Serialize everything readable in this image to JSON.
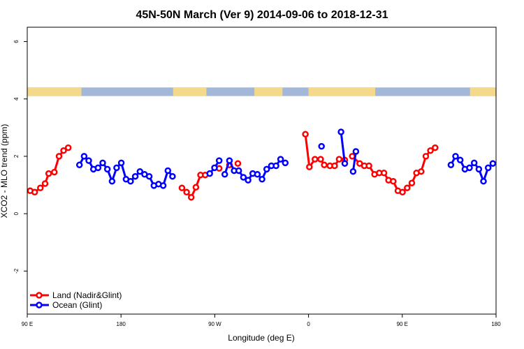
{
  "chart_data": {
    "type": "line",
    "title": "45N-50N March (Ver 9)   2014-09-06 to 2018-12-31",
    "xlabel": "Longitude (deg E)",
    "ylabel": "XCO2 - MLO trend (ppm)",
    "xlim": [
      90,
      540
    ],
    "ylim": [
      -3.5,
      6.5
    ],
    "x_ticks": [
      {
        "value": 90,
        "label": "90 E"
      },
      {
        "value": 180,
        "label": "180"
      },
      {
        "value": 270,
        "label": "90 W"
      },
      {
        "value": 360,
        "label": "0"
      },
      {
        "value": 450,
        "label": "90 E"
      },
      {
        "value": 540,
        "label": "180"
      }
    ],
    "y_ticks": [
      {
        "value": -2,
        "label": "-2"
      },
      {
        "value": 0,
        "label": "0"
      },
      {
        "value": 2,
        "label": "2"
      },
      {
        "value": 4,
        "label": "4"
      },
      {
        "value": 6,
        "label": "6"
      }
    ],
    "legend": {
      "position": "bottom-left",
      "entries": [
        {
          "name": "Land (Nadir&Glint)",
          "color": "#ff0000"
        },
        {
          "name": "Ocean (Glint)",
          "color": "#0000ff"
        }
      ]
    },
    "surface_strip": {
      "y_range": [
        4.1,
        4.4
      ],
      "land_color": "#f5d98a",
      "ocean_color": "#a3b8d8",
      "land_intervals": [
        [
          90,
          142
        ],
        [
          230,
          262
        ],
        [
          308,
          335
        ],
        [
          360,
          424
        ],
        [
          515,
          540
        ]
      ]
    },
    "series": [
      {
        "name": "Land (Nadir&Glint)",
        "color": "#ff0000",
        "segments": [
          [
            [
              92.8,
              0.8
            ],
            [
              97.2,
              0.75
            ],
            [
              102.6,
              0.9
            ],
            [
              107.1,
              1.05
            ],
            [
              110.6,
              1.4
            ],
            [
              116.0,
              1.45
            ],
            [
              120.5,
              2.0
            ],
            [
              124.9,
              2.2
            ],
            [
              129.4,
              2.3
            ]
          ],
          [
            [
              238.5,
              0.9
            ],
            [
              243.0,
              0.75
            ],
            [
              247.4,
              0.57
            ],
            [
              251.9,
              0.92
            ],
            [
              256.3,
              1.35
            ],
            [
              260.8,
              1.35
            ]
          ],
          [
            [
              274.2,
              1.58
            ]
          ],
          [
            [
              284.1,
              1.7
            ]
          ],
          [
            [
              292.2,
              1.75
            ]
          ],
          [
            [
              357.0,
              2.77
            ],
            [
              360.8,
              1.63
            ],
            [
              366.2,
              1.9
            ],
            [
              371.6,
              1.9
            ],
            [
              375.1,
              1.7
            ],
            [
              380.5,
              1.67
            ],
            [
              385.0,
              1.67
            ],
            [
              389.4,
              1.9
            ],
            [
              394.8,
              1.87
            ]
          ],
          [
            [
              402.0,
              2.0
            ],
            [
              409.1,
              1.75
            ],
            [
              413.6,
              1.67
            ],
            [
              418.0,
              1.67
            ],
            [
              423.4,
              1.37
            ],
            [
              427.9,
              1.42
            ],
            [
              432.4,
              1.42
            ],
            [
              436.8,
              1.17
            ],
            [
              441.3,
              1.13
            ],
            [
              445.8,
              0.8
            ],
            [
              450.2,
              0.75
            ],
            [
              454.7,
              0.9
            ],
            [
              459.2,
              1.07
            ],
            [
              463.6,
              1.42
            ],
            [
              468.1,
              1.47
            ],
            [
              472.6,
              2.0
            ],
            [
              477.0,
              2.2
            ],
            [
              481.5,
              2.3
            ]
          ]
        ]
      },
      {
        "name": "Ocean (Glint)",
        "color": "#0000ff",
        "segments": [
          [
            [
              140.1,
              1.7
            ],
            [
              144.6,
              2.0
            ],
            [
              149.0,
              1.85
            ],
            [
              153.5,
              1.55
            ],
            [
              158.0,
              1.6
            ],
            [
              162.4,
              1.77
            ],
            [
              166.9,
              1.55
            ],
            [
              171.4,
              1.13
            ],
            [
              175.8,
              1.6
            ],
            [
              180.3,
              1.77
            ],
            [
              184.8,
              1.2
            ],
            [
              189.2,
              1.13
            ],
            [
              193.7,
              1.3
            ],
            [
              198.2,
              1.47
            ],
            [
              202.6,
              1.37
            ],
            [
              207.1,
              1.3
            ],
            [
              211.6,
              0.98
            ],
            [
              216.0,
              1.03
            ],
            [
              220.5,
              0.98
            ],
            [
              225.0,
              1.5
            ],
            [
              229.4,
              1.3
            ]
          ],
          [
            [
              265.2,
              1.4
            ],
            [
              269.7,
              1.6
            ],
            [
              274.2,
              1.85
            ]
          ],
          [
            [
              279.6,
              1.37
            ],
            [
              284.1,
              1.85
            ],
            [
              288.6,
              1.5
            ],
            [
              293.0,
              1.5
            ],
            [
              297.5,
              1.27
            ],
            [
              302.0,
              1.17
            ],
            [
              306.4,
              1.4
            ],
            [
              310.9,
              1.37
            ],
            [
              315.4,
              1.2
            ],
            [
              319.8,
              1.55
            ],
            [
              324.3,
              1.67
            ],
            [
              328.8,
              1.67
            ],
            [
              333.2,
              1.9
            ],
            [
              337.7,
              1.77
            ]
          ],
          [
            [
              372.5,
              2.35
            ]
          ],
          [
            [
              391.2,
              2.85
            ],
            [
              394.8,
              1.75
            ]
          ],
          [
            [
              402.8,
              1.47
            ],
            [
              405.5,
              2.17
            ]
          ],
          [
            [
              496.7,
              1.7
            ],
            [
              501.1,
              2.0
            ],
            [
              505.6,
              1.87
            ],
            [
              510.1,
              1.55
            ],
            [
              514.5,
              1.6
            ],
            [
              519.0,
              1.77
            ],
            [
              523.5,
              1.55
            ],
            [
              527.9,
              1.13
            ],
            [
              532.4,
              1.6
            ],
            [
              536.9,
              1.75
            ]
          ]
        ]
      }
    ]
  }
}
